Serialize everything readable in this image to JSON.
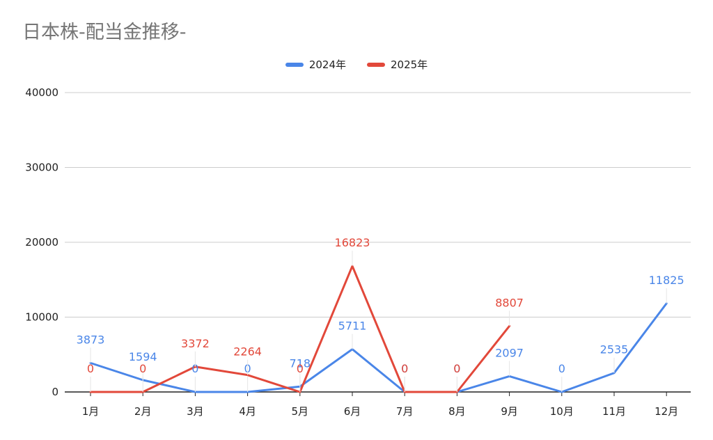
{
  "title": "日本株-配当金推移-",
  "chart_data": {
    "type": "line",
    "title": "日本株-配当金推移-",
    "categories": [
      "1月",
      "2月",
      "3月",
      "4月",
      "5月",
      "6月",
      "7月",
      "8月",
      "9月",
      "10月",
      "11月",
      "12月"
    ],
    "series": [
      {
        "name": "2024年",
        "color": "#4a86e8",
        "values": [
          3873,
          1594,
          0,
          0,
          718,
          5711,
          0,
          0,
          2097,
          0,
          2535,
          11825
        ]
      },
      {
        "name": "2025年",
        "color": "#e2483a",
        "values": [
          0,
          0,
          3372,
          2264,
          0,
          16823,
          0,
          0,
          8807,
          null,
          null,
          null
        ]
      }
    ],
    "yticks": [
      "0",
      "10000",
      "20000",
      "30000",
      "40000"
    ],
    "ylim": [
      0,
      40000
    ],
    "grid": true,
    "legend_position": "top"
  }
}
